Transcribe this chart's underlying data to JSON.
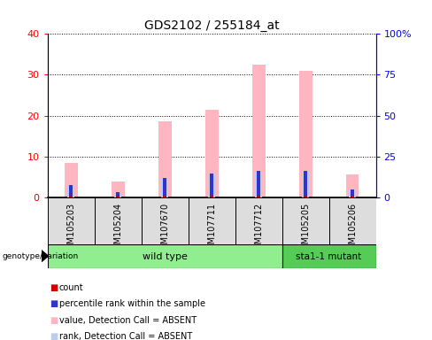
{
  "title": "GDS2102 / 255184_at",
  "samples": [
    "GSM105203",
    "GSM105204",
    "GSM107670",
    "GSM107711",
    "GSM107712",
    "GSM105205",
    "GSM105206"
  ],
  "count_values": [
    0.4,
    0.3,
    0.4,
    0.4,
    0.4,
    0.4,
    0.4
  ],
  "percentile_rank_values": [
    3.0,
    1.2,
    4.8,
    5.8,
    6.5,
    6.5,
    1.8
  ],
  "value_absent": [
    8.5,
    3.8,
    18.5,
    21.5,
    32.5,
    31.0,
    5.5
  ],
  "rank_absent": [
    3.0,
    1.2,
    4.8,
    5.8,
    6.5,
    6.5,
    1.8
  ],
  "ylim_left": [
    0,
    40
  ],
  "ylim_right": [
    0,
    100
  ],
  "yticks_left": [
    0,
    10,
    20,
    30,
    40
  ],
  "yticks_right": [
    0,
    25,
    50,
    75,
    100
  ],
  "yticklabels_right": [
    "0",
    "25",
    "50",
    "75",
    "100%"
  ],
  "count_color": "#CC0000",
  "percentile_color": "#3333CC",
  "value_absent_color": "#FFB6C1",
  "rank_absent_color": "#BBCCEE",
  "wt_color": "#90EE90",
  "mut_color": "#55CC55",
  "genotype_label": "genotype/variation",
  "legend_items": [
    {
      "label": "count",
      "color": "#CC0000"
    },
    {
      "label": "percentile rank within the sample",
      "color": "#3333CC"
    },
    {
      "label": "value, Detection Call = ABSENT",
      "color": "#FFB6C1"
    },
    {
      "label": "rank, Detection Call = ABSENT",
      "color": "#BBCCEE"
    }
  ]
}
